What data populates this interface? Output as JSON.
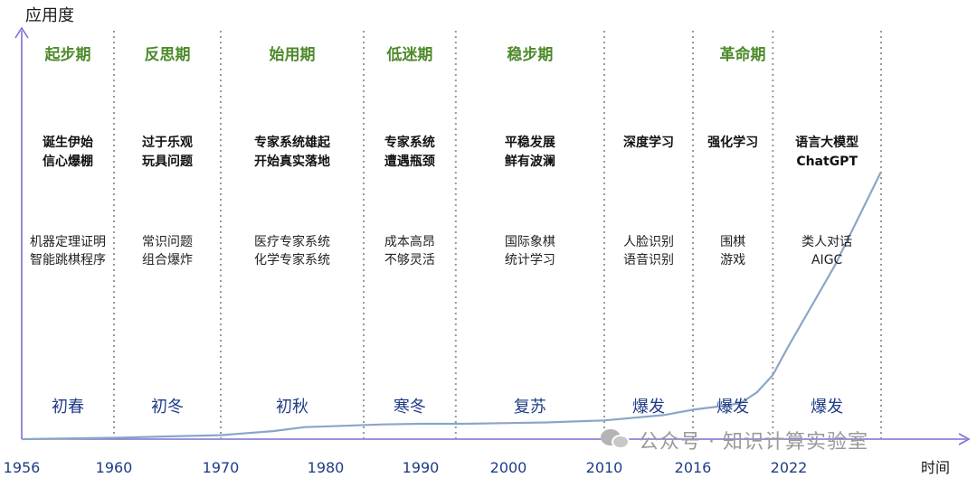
{
  "chart_data": {
    "type": "line",
    "ylabel": "应用度",
    "xlabel": "时间",
    "x_ticks": [
      "1956",
      "1960",
      "1970",
      "1980",
      "1990",
      "2000",
      "2010",
      "2016",
      "2022"
    ],
    "periods": [
      {
        "name": "起步期",
        "start": "1956",
        "end": "1960",
        "trend": "诞生伊始\n信心爆棚",
        "events": "机器定理证明\n智能跳棋程序",
        "season": "初春"
      },
      {
        "name": "反思期",
        "start": "1960",
        "end": "1970",
        "trend": "过于乐观\n玩具问题",
        "events": "常识问题\n组合爆炸",
        "season": "初冬"
      },
      {
        "name": "始用期",
        "start": "1970",
        "end": "1984",
        "trend": "专家系统雄起\n开始真实落地",
        "events": "医疗专家系统\n化学专家系统",
        "season": "初秋"
      },
      {
        "name": "低迷期",
        "start": "1984",
        "end": "1994",
        "trend": "专家系统\n遭遇瓶颈",
        "events": "成本高昂\n不够灵活",
        "season": "寒冬"
      },
      {
        "name": "稳步期",
        "start": "1994",
        "end": "2010",
        "trend": "平稳发展\n鲜有波澜",
        "events": "国际象棋\n统计学习",
        "season": "复苏"
      },
      {
        "name": "",
        "start": "2010",
        "end": "2016",
        "trend": "深度学习",
        "events": "人脸识别\n语音识别",
        "season": "爆发"
      },
      {
        "name": "",
        "start": "2016",
        "end": "2021",
        "trend": "强化学习",
        "events": "围棋\n游戏",
        "season": "爆发"
      },
      {
        "name": "",
        "start": "2021",
        "end": "2024",
        "trend": "语言大模型\nChatGPT",
        "events": "类人对话\nAIGC",
        "season": "爆发"
      }
    ],
    "group_label": {
      "name": "革命期",
      "start": "2010",
      "end": "2024"
    },
    "series": [
      {
        "x": [
          1956,
          1960,
          1965,
          1970,
          1975,
          1978,
          1982,
          1986,
          1990,
          1995,
          2000,
          2004,
          2008,
          2010,
          2012,
          2014,
          2016,
          2018,
          2019,
          2020,
          2021,
          2022,
          2023,
          2024
        ],
        "y": [
          0,
          1,
          2,
          3,
          6,
          9,
          10,
          11,
          11.5,
          11.5,
          12,
          12.5,
          13.5,
          14,
          16,
          18,
          22,
          25,
          27,
          35,
          48,
          70,
          130,
          200
        ]
      }
    ],
    "colors": {
      "axis": "#7b6fd6",
      "curve": "#8aa6c7",
      "period_title": "#4e8a2b",
      "season": "#1f3c86",
      "divider": "#9a9a9a",
      "text": "#111111"
    },
    "watermark": "公众号 · 知识计算实验室"
  }
}
